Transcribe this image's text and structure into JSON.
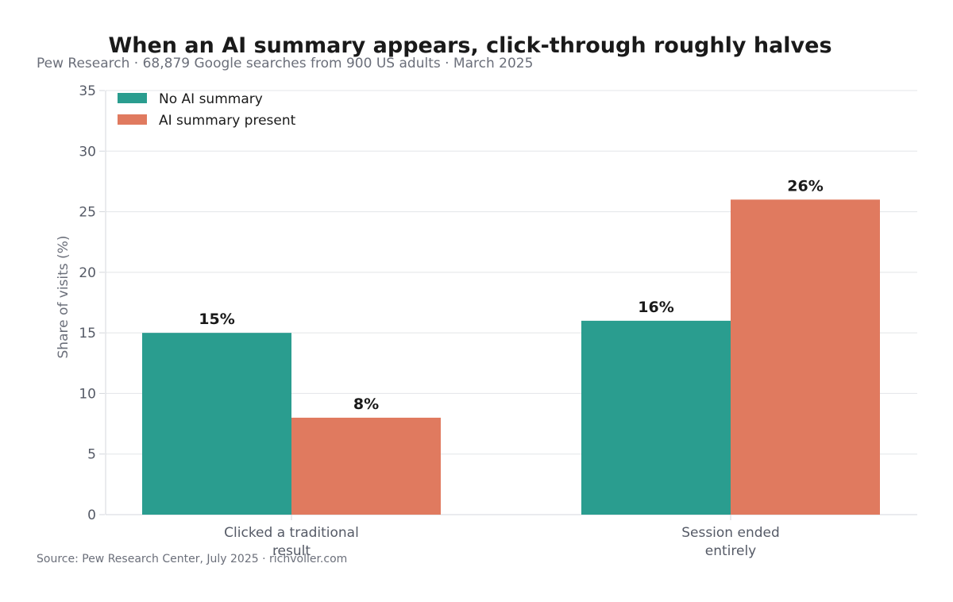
{
  "chart_data": {
    "type": "bar",
    "title": "When an AI summary appears, click-through roughly halves",
    "subtitle": "Pew Research · 68,879 Google searches from 900 US adults · March 2025",
    "source": "Source: Pew Research Center, July 2025 · richvoller.com",
    "xlabel": "",
    "ylabel": "Share of visits (%)",
    "ylim": [
      0,
      35
    ],
    "yticks": [
      0,
      5,
      10,
      15,
      20,
      25,
      30,
      35
    ],
    "ytick_labels": [
      "0",
      "5",
      "10",
      "15",
      "20",
      "25",
      "30",
      "35"
    ],
    "categories": [
      [
        "Clicked a traditional",
        "result"
      ],
      [
        "Session ended",
        "entirely"
      ]
    ],
    "series": [
      {
        "name": "No AI summary",
        "color": "#2a9d8f",
        "values": [
          15,
          16
        ],
        "labels": [
          "15%",
          "16%"
        ]
      },
      {
        "name": "AI summary present",
        "color": "#e07a5f",
        "values": [
          8,
          26
        ],
        "labels": [
          "8%",
          "26%"
        ]
      }
    ],
    "grid": true,
    "legend_position": "top-left"
  }
}
